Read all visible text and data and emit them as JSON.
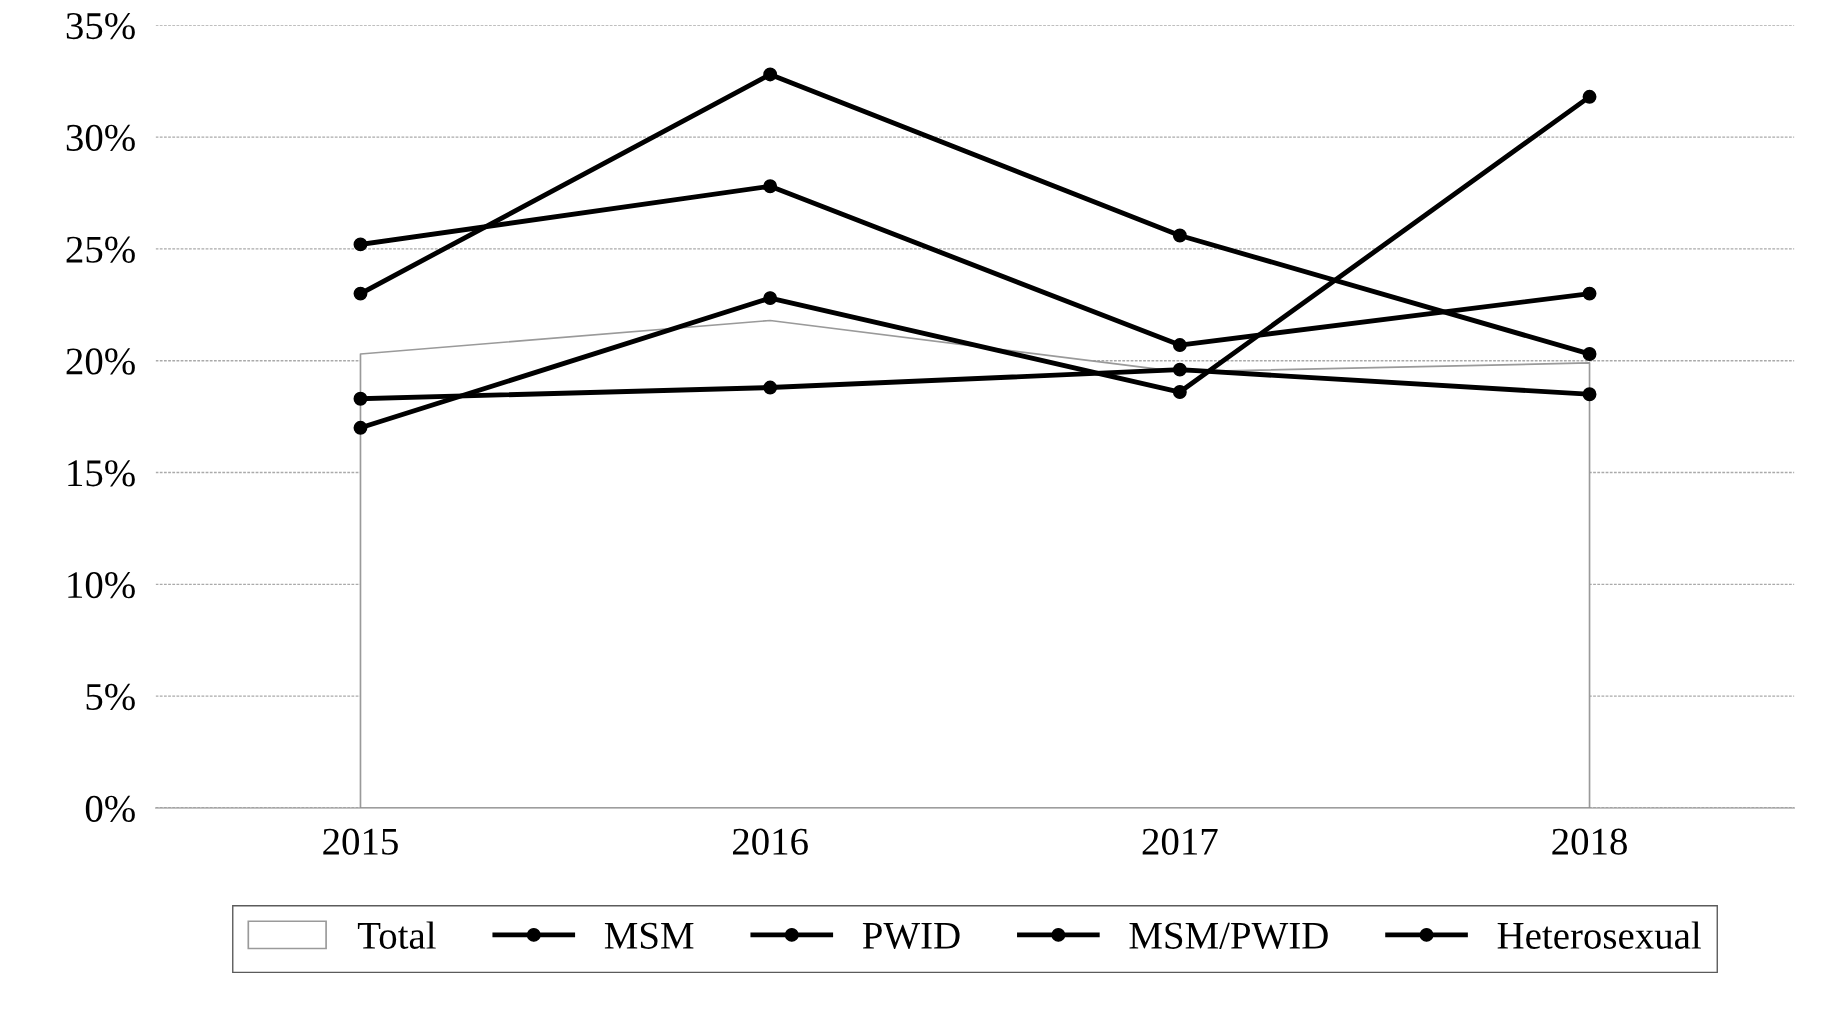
{
  "chart_data": {
    "type": "line",
    "categories": [
      "2015",
      "2016",
      "2017",
      "2018"
    ],
    "series": [
      {
        "name": "Total",
        "type": "area",
        "marker": "none",
        "color": "#ffffff",
        "values": [
          20.3,
          21.8,
          19.5,
          19.9
        ]
      },
      {
        "name": "MSM",
        "color": "#000000",
        "values": [
          23.0,
          32.8,
          25.6,
          20.3
        ]
      },
      {
        "name": "PWID",
        "color": "#000000",
        "values": [
          25.2,
          27.8,
          20.7,
          23.0
        ]
      },
      {
        "name": "MSM/PWID",
        "color": "#000000",
        "values": [
          17.0,
          22.8,
          18.6,
          31.8
        ]
      },
      {
        "name": "Heterosexual",
        "color": "#000000",
        "values": [
          18.3,
          18.8,
          19.6,
          18.5
        ]
      }
    ],
    "ylim": [
      0,
      35
    ],
    "yticks": [
      {
        "value": 0,
        "label": "0%"
      },
      {
        "value": 5,
        "label": "5%"
      },
      {
        "value": 10,
        "label": "10%"
      },
      {
        "value": 15,
        "label": "15%"
      },
      {
        "value": 20,
        "label": "20%"
      },
      {
        "value": 25,
        "label": "25%"
      },
      {
        "value": 30,
        "label": "30%"
      },
      {
        "value": 35,
        "label": "35%"
      }
    ],
    "grid": "y",
    "legend": "bottom",
    "marker": "circle",
    "line_style": "solid"
  }
}
